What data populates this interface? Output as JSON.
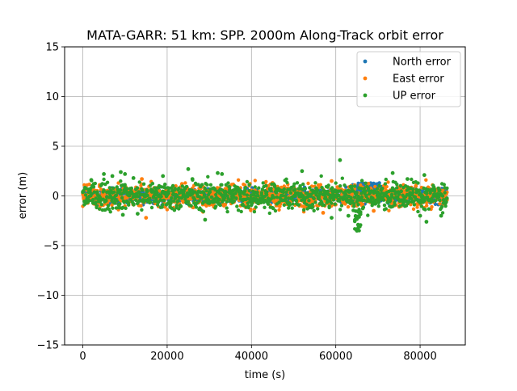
{
  "chart_data": {
    "type": "scatter",
    "title": "MATA-GARR: 51 km: SPP. 2000m Along-Track orbit error",
    "xlabel": "time (s)",
    "ylabel": "error (m)",
    "xlim": [
      -4320,
      90720
    ],
    "ylim": [
      -15,
      15
    ],
    "xticks": [
      0,
      20000,
      40000,
      60000,
      80000
    ],
    "xtick_labels": [
      "0",
      "20000",
      "40000",
      "60000",
      "80000"
    ],
    "yticks": [
      15,
      10,
      5,
      0,
      -5,
      -10,
      -15
    ],
    "ytick_labels": [
      "15",
      "10",
      "5",
      "0",
      "−5",
      "−10",
      "−15"
    ],
    "grid": true,
    "legend_position": "top-right",
    "x_range": [
      0,
      86400
    ],
    "series": [
      {
        "name": "North error",
        "color": "#1f77b4",
        "sample_step_s": 30,
        "typical_range": [
          -1.0,
          1.0
        ],
        "features": [
          {
            "x_range": [
              65000,
              71000
            ],
            "y_range": [
              0.2,
              1.3
            ]
          }
        ],
        "points": [
          [
            26500,
            0.6
          ],
          [
            38500,
            0.8
          ],
          [
            64000,
            1.1
          ],
          [
            65500,
            1.2
          ],
          [
            66500,
            1.1
          ],
          [
            67500,
            1.2
          ],
          [
            68500,
            1.0
          ],
          [
            69500,
            1.1
          ],
          [
            70500,
            0.9
          ]
        ]
      },
      {
        "name": "East error",
        "color": "#ff7f0e",
        "sample_step_s": 30,
        "typical_range": [
          -1.6,
          1.6
        ],
        "features": [],
        "points": [
          [
            4000,
            1.1
          ],
          [
            14000,
            1.7
          ],
          [
            15000,
            -2.2
          ],
          [
            23500,
            1.2
          ],
          [
            28500,
            -1.6
          ],
          [
            45000,
            1.3
          ],
          [
            57000,
            -1.7
          ],
          [
            59000,
            1.5
          ],
          [
            69000,
            -1.5
          ],
          [
            75000,
            -1.1
          ],
          [
            79000,
            1.0
          ],
          [
            81000,
            -1.2
          ]
        ]
      },
      {
        "name": "UP error",
        "color": "#2ca02c",
        "sample_step_s": 30,
        "typical_range": [
          -2.0,
          2.0
        ],
        "features": [
          {
            "x_range": [
              64500,
              66000
            ],
            "y_range": [
              -3.5,
              -1.5
            ]
          }
        ],
        "points": [
          [
            2000,
            1.6
          ],
          [
            5000,
            2.2
          ],
          [
            7000,
            2.0
          ],
          [
            9000,
            2.4
          ],
          [
            10000,
            2.2
          ],
          [
            12000,
            1.8
          ],
          [
            19000,
            2.0
          ],
          [
            25000,
            2.7
          ],
          [
            26000,
            1.7
          ],
          [
            32000,
            2.3
          ],
          [
            33000,
            2.2
          ],
          [
            52000,
            2.5
          ],
          [
            61000,
            3.6
          ],
          [
            65000,
            -3.5
          ],
          [
            65300,
            -2.9
          ],
          [
            73500,
            2.3
          ],
          [
            81000,
            2.1
          ],
          [
            9500,
            -1.9
          ],
          [
            13000,
            -1.8
          ],
          [
            29000,
            -2.4
          ],
          [
            59000,
            -2.2
          ],
          [
            63000,
            -2.0
          ],
          [
            77000,
            1.7
          ],
          [
            80000,
            -2.0
          ],
          [
            85000,
            -2.0
          ],
          [
            81500,
            -2.6
          ]
        ]
      }
    ]
  }
}
